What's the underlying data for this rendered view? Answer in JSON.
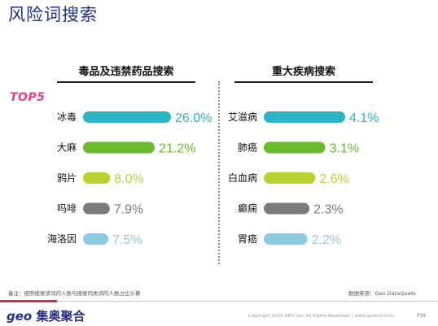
{
  "page": {
    "title": "风险词搜索",
    "top_badge": "TOP5",
    "footnote": "备注：按照搜索该词的人数与搜索同类词的人数占比计算",
    "source": "数据来源：Geo DataQuate",
    "logo_geo": "geo",
    "logo_text": "集奥聚合",
    "copyright": "Copyright 2015 GEO Ltd. All Rights Reserved.  |  www.geotmt.com",
    "page_number": "P34"
  },
  "colors": {
    "title": "#1f2f86",
    "badge": "#e63f88",
    "accent_red": "#d0304a"
  },
  "chart_data": [
    {
      "type": "bar",
      "orientation": "horizontal",
      "title": "毒品及违禁药品搜索",
      "categories": [
        "冰毒",
        "大麻",
        "鸦片",
        "吗啡",
        "海洛因"
      ],
      "values": [
        26.0,
        21.2,
        8.0,
        7.9,
        7.5
      ],
      "value_labels": [
        "26.0%",
        "21.2%",
        "8.0%",
        "7.9%",
        "7.5%"
      ],
      "bar_colors": [
        "#2bb3c6",
        "#6aba2e",
        "#b8d433",
        "#7b7b7b",
        "#8ccbe0"
      ],
      "xlim": [
        0,
        26
      ],
      "grid": false,
      "legend": "none"
    },
    {
      "type": "bar",
      "orientation": "horizontal",
      "title": "重大疾病搜索",
      "categories": [
        "艾滋病",
        "肺癌",
        "白血病",
        "癫痫",
        "胃癌"
      ],
      "values": [
        4.1,
        3.1,
        2.6,
        2.3,
        2.2
      ],
      "value_labels": [
        "4.1%",
        "3.1%",
        "2.6%",
        "2.3%",
        "2.2%"
      ],
      "bar_colors": [
        "#2bb3c6",
        "#6aba2e",
        "#b8d433",
        "#7b7b7b",
        "#8ccbe0"
      ],
      "xlim": [
        0,
        4.1
      ],
      "grid": false,
      "legend": "none"
    }
  ]
}
